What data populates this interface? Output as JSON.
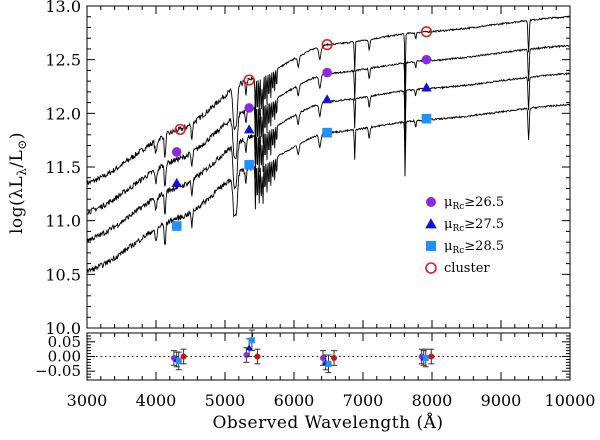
{
  "chart_data": [
    {
      "type": "line",
      "title": "",
      "xlabel": "Observed Wavelength (Å)",
      "ylabel": "log(λL_λ/L_⊙)",
      "ylabel_parts": {
        "pre": "log(",
        "lam1": "λ",
        "L1": "L",
        "sub1": "λ",
        "slash": "/",
        "L2": "L",
        "sub2": "⊙",
        "post": ")"
      },
      "xlim": [
        3000,
        10000
      ],
      "ylim": [
        10.0,
        13.0
      ],
      "xticks": [
        3000,
        4000,
        5000,
        6000,
        7000,
        8000,
        9000,
        10000
      ],
      "xtick_labels": [
        "3000",
        "4000",
        "5000",
        "6000",
        "7000",
        "8000",
        "9000",
        "10000"
      ],
      "yticks": [
        10.0,
        10.5,
        11.0,
        11.5,
        12.0,
        12.5,
        13.0
      ],
      "ytick_labels": [
        "10.0",
        "10.5",
        "11.0",
        "11.5",
        "12.0",
        "12.5",
        "13.0"
      ],
      "legend_position": "right",
      "spectra": [
        {
          "name": "cluster",
          "offset": 0.0
        },
        {
          "name": "μRc≥26.5",
          "offset": -0.27
        },
        {
          "name": "μRc≥27.5",
          "offset": -0.53
        },
        {
          "name": "μRc≥28.5",
          "offset": -0.82
        }
      ],
      "series": [
        {
          "name": "cluster",
          "marker": "open-circle",
          "color": "#e02020",
          "x": [
            4350,
            5350,
            6480,
            7920
          ],
          "y": [
            11.85,
            12.31,
            12.64,
            12.76
          ]
        },
        {
          "name": "μRc≥26.5",
          "marker": "circle",
          "color": "#8a2be2",
          "x": [
            4300,
            5350,
            6480,
            7920
          ],
          "y": [
            11.64,
            12.05,
            12.38,
            12.5
          ]
        },
        {
          "name": "μRc≥27.5",
          "marker": "triangle",
          "color": "#1010e0",
          "x": [
            4300,
            5350,
            6480,
            7920
          ],
          "y": [
            11.35,
            11.85,
            12.13,
            12.24
          ]
        },
        {
          "name": "μRc≥28.5",
          "marker": "square",
          "color": "#1e90ff",
          "x": [
            4300,
            5350,
            6480,
            7920
          ],
          "y": [
            10.95,
            11.52,
            11.82,
            11.95
          ]
        }
      ],
      "legend": [
        {
          "marker": "circle",
          "color": "#8a2be2",
          "mu": "μ",
          "sub": "Rc",
          "rest": "≥26.5"
        },
        {
          "marker": "triangle",
          "color": "#1010e0",
          "mu": "μ",
          "sub": "Rc",
          "rest": "≥27.5"
        },
        {
          "marker": "square",
          "color": "#1e90ff",
          "mu": "μ",
          "sub": "Rc",
          "rest": "≥28.5"
        },
        {
          "marker": "open-circle",
          "color": "#e02020",
          "mu": "",
          "sub": "",
          "rest": "cluster"
        }
      ]
    },
    {
      "type": "scatter",
      "title": "",
      "xlabel": "Observed Wavelength (Å)",
      "ylabel": "",
      "xlim": [
        3000,
        10000
      ],
      "ylim": [
        -0.08,
        0.08
      ],
      "yticks": [
        -0.05,
        0.0,
        0.05
      ],
      "ytick_labels": [
        "−0.05",
        "0.00",
        "0.05"
      ],
      "reference_line": 0.0,
      "series": [
        {
          "name": "μRc≥26.5",
          "marker": "circle",
          "color": "#8a2be2",
          "x": [
            4260,
            5310,
            6420,
            7850
          ],
          "y": [
            -0.005,
            0.005,
            -0.005,
            0.0
          ],
          "yerr": [
            0.025,
            0.025,
            0.025,
            0.025
          ]
        },
        {
          "name": "μRc≥27.5",
          "marker": "triangle",
          "color": "#1010e0",
          "x": [
            4300,
            5350,
            6460,
            7880
          ],
          "y": [
            -0.01,
            0.03,
            -0.02,
            -0.005
          ],
          "yerr": [
            0.025,
            0.03,
            0.025,
            0.025
          ]
        },
        {
          "name": "μRc≥28.5",
          "marker": "square",
          "color": "#1e90ff",
          "x": [
            4330,
            5390,
            6500,
            7910
          ],
          "y": [
            -0.015,
            0.055,
            -0.025,
            -0.005
          ],
          "yerr": [
            0.03,
            0.035,
            0.03,
            0.03
          ]
        },
        {
          "name": "cluster",
          "marker": "circle",
          "color": "#cc1111",
          "x": [
            4400,
            5470,
            6580,
            7990
          ],
          "y": [
            0.0,
            0.0,
            -0.005,
            0.0
          ],
          "yerr": [
            0.025,
            0.025,
            0.025,
            0.025
          ]
        }
      ]
    }
  ]
}
